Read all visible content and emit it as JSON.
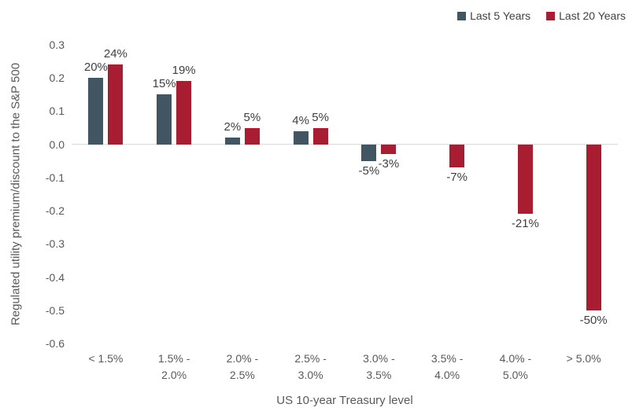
{
  "legend": {
    "items": [
      {
        "label": "Last 5 Years",
        "color": "#425563"
      },
      {
        "label": "Last 20 Years",
        "color": "#A81D31"
      }
    ]
  },
  "chart_data": {
    "type": "bar",
    "title": "",
    "categories": [
      "< 1.5%",
      "1.5% - 2.0%",
      "2.0% - 2.5%",
      "2.5% - 3.0%",
      "3.0% - 3.5%",
      "3.5% - 4.0%",
      "4.0% - 5.0%",
      "> 5.0%"
    ],
    "category_lines": [
      [
        "< 1.5%"
      ],
      [
        "1.5% -",
        "2.0%"
      ],
      [
        "2.0% -",
        "2.5%"
      ],
      [
        "2.5% -",
        "3.0%"
      ],
      [
        "3.0% -",
        "3.5%"
      ],
      [
        "3.5% -",
        "4.0%"
      ],
      [
        "4.0% -",
        "5.0%"
      ],
      [
        "> 5.0%"
      ]
    ],
    "series": [
      {
        "name": "Last 5 Years",
        "color": "#425563",
        "values": [
          0.2,
          0.15,
          0.02,
          0.04,
          -0.05,
          null,
          null,
          null
        ],
        "labels": [
          "20%",
          "15%",
          "2%",
          "4%",
          "-5%",
          "",
          "",
          ""
        ]
      },
      {
        "name": "Last 20 Years",
        "color": "#A81D31",
        "values": [
          0.24,
          0.19,
          0.05,
          0.05,
          -0.03,
          -0.07,
          -0.21,
          -0.5
        ],
        "labels": [
          "24%",
          "19%",
          "5%",
          "5%",
          "-3%",
          "-7%",
          "-21%",
          "-50%"
        ]
      }
    ],
    "xlabel": "US 10-year Treasury level",
    "ylabel": "Regulated utility premium/discount to the S&P 500",
    "ylim": [
      -0.6,
      0.3
    ],
    "ytick_step": 0.1,
    "yticks": [
      "0.3",
      "0.2",
      "0.1",
      "0.0",
      "-0.1",
      "-0.2",
      "-0.3",
      "-0.4",
      "-0.5",
      "-0.6"
    ],
    "grid": false,
    "legend_position": "top-right",
    "colors": {
      "background": "#FFFFFF",
      "axis_line": "#D9D9D9",
      "tick_label": "#595959",
      "data_label": "#404040",
      "axis_title": "#595959",
      "legend_text": "#404040"
    }
  }
}
